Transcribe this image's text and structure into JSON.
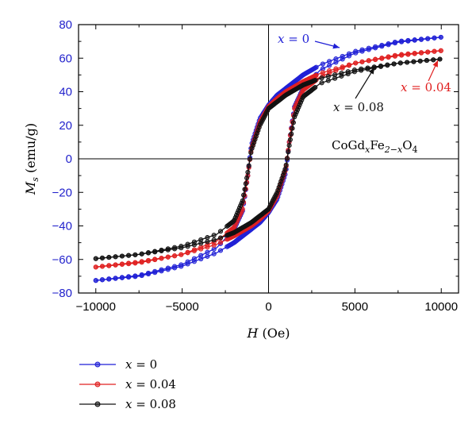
{
  "chart_data": {
    "type": "line",
    "xlabel_var": "H",
    "xlabel_unit": " (Oe)",
    "ylabel_var": "M",
    "ylabel_sub": "s",
    "ylabel_unit": " (emu/g)",
    "xlim": [
      -11000,
      11000
    ],
    "ylim": [
      -80,
      80
    ],
    "x_ticks": [
      -10000,
      -5000,
      0,
      5000,
      10000
    ],
    "x_tick_labels": [
      "−10000",
      "−5000",
      "0",
      "5000",
      "10000"
    ],
    "y_ticks": [
      -80,
      -60,
      -40,
      -20,
      0,
      20,
      40,
      60,
      80
    ],
    "y_tick_labels": [
      "−80",
      "−60",
      "−40",
      "−20",
      "0",
      "20",
      "40",
      "60",
      "80"
    ],
    "y_tick_label_color": "#2222cc",
    "grid": false,
    "zero_lines": true,
    "legend_position": "bottom-left-below-plot",
    "formula": {
      "base": "CoGd",
      "sub1": "x",
      "mid": "Fe",
      "sub2": "2−x",
      "end": "O",
      "sub3": "4"
    },
    "series": [
      {
        "name": "x = 0",
        "var": "x",
        "eq": " = 0",
        "color": "#1f1fd6",
        "ms": 73,
        "hc": 1550,
        "mr": 32,
        "upper_branch": [
          [
            -10000,
            -72.5
          ],
          [
            -7500,
            -69.5
          ],
          [
            -5000,
            -63
          ],
          [
            -3000,
            -53
          ],
          [
            -2000,
            -42
          ],
          [
            -1500,
            -31
          ],
          [
            -1200,
            -10
          ],
          [
            -1000,
            8
          ],
          [
            -500,
            24
          ],
          [
            0,
            32
          ],
          [
            500,
            38
          ],
          [
            1000,
            42
          ],
          [
            2000,
            50
          ],
          [
            3000,
            56
          ],
          [
            5000,
            64
          ],
          [
            7500,
            70
          ],
          [
            10000,
            72.5
          ]
        ],
        "lower_branch": [
          [
            -10000,
            -72.5
          ],
          [
            -7500,
            -70
          ],
          [
            -5000,
            -64
          ],
          [
            -3000,
            -56
          ],
          [
            -2000,
            -50
          ],
          [
            -1000,
            -42
          ],
          [
            -500,
            -38
          ],
          [
            0,
            -32
          ],
          [
            500,
            -24
          ],
          [
            1000,
            -8
          ],
          [
            1200,
            10
          ],
          [
            1500,
            31
          ],
          [
            2000,
            42
          ],
          [
            3000,
            53
          ],
          [
            5000,
            63
          ],
          [
            7500,
            69.5
          ],
          [
            10000,
            72.5
          ]
        ]
      },
      {
        "name": "x = 0.04",
        "var": "x",
        "eq": " = 0.04",
        "color": "#e02020",
        "ms": 65,
        "hc": 1550,
        "mr": 31,
        "upper_branch": [
          [
            -10000,
            -64.5
          ],
          [
            -7500,
            -61.5
          ],
          [
            -5000,
            -57
          ],
          [
            -3000,
            -49
          ],
          [
            -2000,
            -41
          ],
          [
            -1500,
            -30
          ],
          [
            -1200,
            -10
          ],
          [
            -1000,
            6
          ],
          [
            -500,
            22
          ],
          [
            0,
            31
          ],
          [
            500,
            36
          ],
          [
            1000,
            40
          ],
          [
            2000,
            46
          ],
          [
            3000,
            51
          ],
          [
            5000,
            57
          ],
          [
            7500,
            62
          ],
          [
            10000,
            64.5
          ]
        ],
        "lower_branch": [
          [
            -10000,
            -64.5
          ],
          [
            -7500,
            -62
          ],
          [
            -5000,
            -57
          ],
          [
            -3000,
            -51
          ],
          [
            -2000,
            -46
          ],
          [
            -1000,
            -40
          ],
          [
            -500,
            -36
          ],
          [
            0,
            -31
          ],
          [
            500,
            -22
          ],
          [
            1000,
            -6
          ],
          [
            1200,
            10
          ],
          [
            1500,
            30
          ],
          [
            2000,
            41
          ],
          [
            3000,
            49
          ],
          [
            5000,
            57
          ],
          [
            7500,
            61.5
          ],
          [
            10000,
            64.5
          ]
        ]
      },
      {
        "name": "x = 0.08",
        "var": "x",
        "eq": " = 0.08",
        "color": "#111111",
        "ms": 60,
        "hc": 1500,
        "mr": 30,
        "upper_branch": [
          [
            -10000,
            -59.5
          ],
          [
            -7500,
            -57
          ],
          [
            -5000,
            -52
          ],
          [
            -3000,
            -45
          ],
          [
            -2000,
            -37
          ],
          [
            -1500,
            -25
          ],
          [
            -1200,
            -8
          ],
          [
            -1000,
            5
          ],
          [
            -500,
            20
          ],
          [
            0,
            30
          ],
          [
            500,
            34
          ],
          [
            1000,
            38
          ],
          [
            2000,
            44
          ],
          [
            3000,
            48
          ],
          [
            5000,
            53
          ],
          [
            7500,
            57
          ],
          [
            10000,
            59.5
          ]
        ],
        "lower_branch": [
          [
            -10000,
            -59.5
          ],
          [
            -7500,
            -57
          ],
          [
            -5000,
            -53
          ],
          [
            -3000,
            -48
          ],
          [
            -2000,
            -44
          ],
          [
            -1000,
            -38
          ],
          [
            -500,
            -34
          ],
          [
            0,
            -30
          ],
          [
            500,
            -20
          ],
          [
            1000,
            -5
          ],
          [
            1200,
            8
          ],
          [
            1500,
            25
          ],
          [
            2000,
            37
          ],
          [
            3000,
            45
          ],
          [
            5000,
            52
          ],
          [
            7500,
            57
          ],
          [
            10000,
            59.5
          ]
        ]
      }
    ]
  }
}
